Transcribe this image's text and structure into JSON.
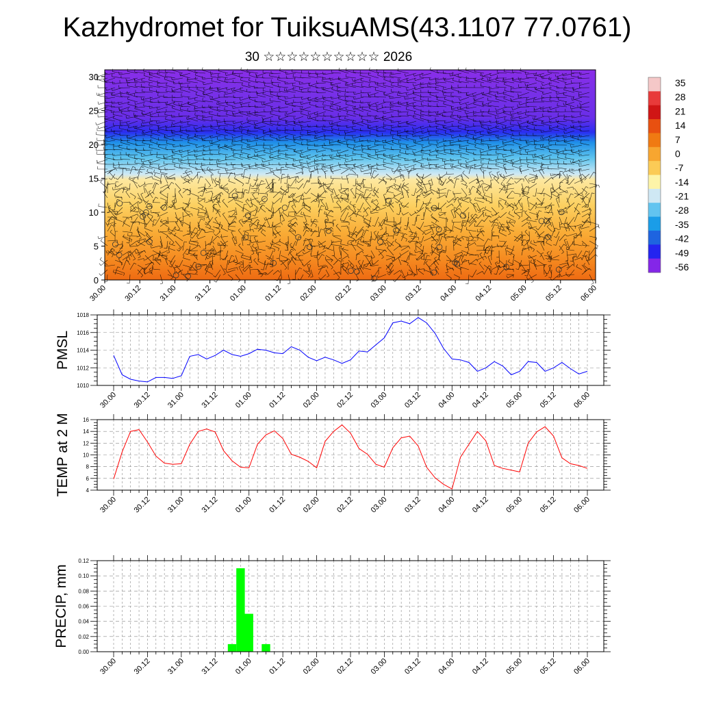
{
  "header": {
    "title": "Kazhydromet for TuiksuAMS(43.1107 77.0761)",
    "subtitle": "30 ☆☆☆☆☆☆☆☆☆☆ 2026"
  },
  "chart_data": [
    {
      "type": "heatmap",
      "name": "vertical cross-section (temperature colour field with wind barbs)",
      "xlabel": "",
      "ylabel": "",
      "x_tick_labels": [
        "30.00",
        "30.12",
        "31.00",
        "31.12",
        "01.00",
        "01.12",
        "02.00",
        "02.12",
        "03.00",
        "03.12",
        "04.00",
        "04.12",
        "05.00",
        "05.12",
        "06.00"
      ],
      "ylim": [
        0,
        31
      ],
      "y_ticks": [
        0,
        5,
        10,
        15,
        20,
        25,
        30
      ],
      "colorbar": {
        "labels": [
          "35",
          "28",
          "21",
          "14",
          "7",
          "0",
          "-7",
          "-14",
          "-21",
          "-28",
          "-35",
          "-42",
          "-49",
          "-56"
        ],
        "colors": [
          "#f5c8c8",
          "#e83a3a",
          "#d01515",
          "#e85010",
          "#f07a12",
          "#f7a630",
          "#fbcb56",
          "#fdf4a8",
          "#cfe8f4",
          "#62c4f0",
          "#1a9de8",
          "#1e64e0",
          "#2424f0",
          "#8426e8"
        ]
      },
      "colormap_by_level": {
        "levels": [
          0,
          3,
          7,
          11,
          14.8,
          15.6,
          18,
          20.3,
          21.8,
          24,
          28,
          31
        ],
        "colors": [
          "#ee6a12",
          "#f58a20",
          "#f9ac36",
          "#fcd060",
          "#fde8a0",
          "#cfe9f5",
          "#5ec4ee",
          "#1f8fe8",
          "#2a2ef0",
          "#6a2ee8",
          "#7a30e8",
          "#8a2ee8"
        ]
      }
    },
    {
      "type": "line",
      "name": "pmsl",
      "ylabel": "PMSL",
      "ylim": [
        1010,
        1018
      ],
      "y_ticks": [
        "1010",
        "1012",
        "1014",
        "1016",
        "1018"
      ],
      "x_tick_labels": [
        "30.00",
        "30.12",
        "31.00",
        "31.12",
        "01.00",
        "01.12",
        "02.00",
        "02.12",
        "03.00",
        "03.12",
        "04.00",
        "04.12",
        "05.00",
        "05.12",
        "06.00"
      ],
      "x_step_hours": 3,
      "color": "#0000ff",
      "values": [
        1013.4,
        1011.2,
        1010.7,
        1010.5,
        1010.4,
        1010.9,
        1010.9,
        1010.8,
        1011.1,
        1013.3,
        1013.5,
        1013.0,
        1013.4,
        1014.0,
        1013.5,
        1013.3,
        1013.6,
        1014.1,
        1014.0,
        1013.7,
        1013.6,
        1014.4,
        1014.0,
        1013.2,
        1012.8,
        1013.2,
        1012.9,
        1012.5,
        1012.9,
        1013.9,
        1013.8,
        1014.6,
        1015.4,
        1017.1,
        1017.3,
        1017.0,
        1017.7,
        1017.1,
        1015.9,
        1014.2,
        1013.0,
        1012.9,
        1012.6,
        1011.6,
        1012.0,
        1012.7,
        1012.2,
        1011.2,
        1011.6,
        1012.7,
        1012.6,
        1011.6,
        1012.0,
        1012.6,
        1011.9,
        1011.3,
        1011.6
      ]
    },
    {
      "type": "line",
      "name": "temp2m",
      "ylabel": "TEMP at 2 M",
      "ylim": [
        4,
        16
      ],
      "y_ticks": [
        "4",
        "6",
        "8",
        "10",
        "12",
        "14",
        "16"
      ],
      "x_tick_labels": [
        "30.00",
        "30.12",
        "31.00",
        "31.12",
        "01.00",
        "01.12",
        "02.00",
        "02.12",
        "03.00",
        "03.12",
        "04.00",
        "04.12",
        "05.00",
        "05.12",
        "06.00"
      ],
      "x_step_hours": 3,
      "color": "#ff0000",
      "values": [
        5.9,
        10.5,
        14.0,
        14.3,
        12.2,
        9.8,
        8.6,
        8.4,
        8.5,
        11.8,
        14.0,
        14.4,
        13.9,
        10.7,
        9.0,
        7.9,
        7.8,
        11.8,
        13.4,
        14.1,
        12.8,
        10.1,
        9.6,
        8.9,
        7.8,
        12.3,
        14.0,
        15.1,
        13.7,
        11.1,
        10.1,
        8.4,
        7.9,
        11.2,
        12.9,
        13.2,
        11.5,
        7.9,
        6.1,
        5.0,
        4.2,
        9.6,
        11.8,
        14.0,
        12.4,
        8.2,
        7.7,
        7.4,
        7.1,
        12.0,
        13.9,
        14.8,
        13.2,
        9.5,
        8.5,
        8.2,
        7.7
      ]
    },
    {
      "type": "bar",
      "name": "precip",
      "ylabel": "PRECIP, mm",
      "ylim": [
        0,
        0.12
      ],
      "y_ticks": [
        "0.00",
        "0.02",
        "0.04",
        "0.06",
        "0.08",
        "0.10",
        "0.12"
      ],
      "x_tick_labels": [
        "30.00",
        "30.12",
        "31.00",
        "31.12",
        "01.00",
        "01.12",
        "02.00",
        "02.12",
        "03.00",
        "03.12",
        "04.00",
        "04.12",
        "05.00",
        "05.12",
        "06.00"
      ],
      "x_step_hours": 3,
      "color": "#00ff00",
      "bars": [
        {
          "hour": 42,
          "value": 0.01
        },
        {
          "hour": 45,
          "value": 0.11
        },
        {
          "hour": 48,
          "value": 0.05
        },
        {
          "hour": 54,
          "value": 0.01
        }
      ]
    }
  ]
}
